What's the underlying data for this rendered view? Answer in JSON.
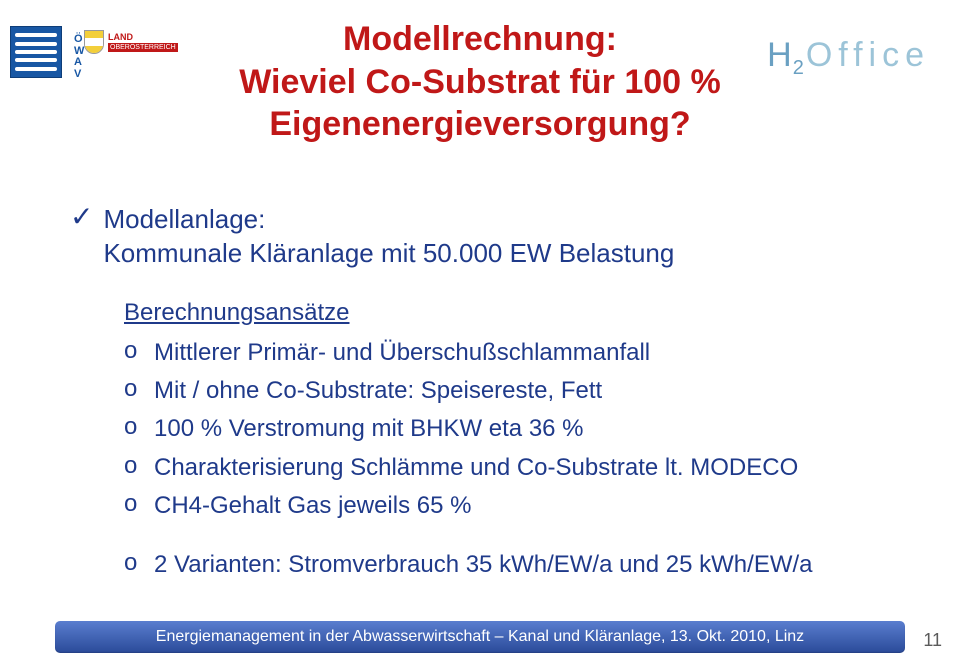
{
  "colors": {
    "title": "#c01818",
    "body_text": "#1f3a8a",
    "footer_bg": "#3b5fb0",
    "footer_bg_grad_top": "#5a7ecf",
    "footer_bg_grad_bottom": "#2a4a99",
    "footer_text": "#ffffff",
    "page_num": "#5b5b5b",
    "logo_owav_bg": "#1857a4",
    "logo_right_h": "#6aa0c2",
    "logo_right_office": "#9cc4d8",
    "ooe_red": "#c01818",
    "ooe_yellow": "#f3cf3a",
    "ooe_white": "#ffffff"
  },
  "title": {
    "lines": [
      "Modellrechnung:",
      "Wieviel Co-Substrat für 100 %",
      "Eigenenergieversorgung?"
    ],
    "font_size": 34
  },
  "modellanlage": {
    "label_line1": "Modellanlage:",
    "label_line2": "Kommunale Kläranlage mit 50.000 EW Belastung"
  },
  "sub_heading": "Berechnungsansätze",
  "bullets": [
    "Mittlerer Primär- und Überschußschlammanfall",
    "Mit / ohne Co-Substrate: Speisereste, Fett",
    "100 % Verstromung mit BHKW eta 36 %",
    "Charakterisierung Schlämme und Co-Substrate lt. MODECO",
    "CH4-Gehalt Gas jeweils 65 %"
  ],
  "bullet_last": "2 Varianten: Stromverbrauch 35 kWh/EW/a und 25 kWh/EW/a",
  "footer": "Energiemanagement in der Abwasserwirtschaft – Kanal und Kläranlage, 13. Okt. 2010, Linz",
  "page_number": "11",
  "logo_right": {
    "h": "H",
    "sub": "2",
    "office": "Office"
  },
  "logo_left": {
    "owav_vertical": "Ö\nW\nA\nV",
    "ooe_land": "LAND",
    "ooe_ober": "OBERÖSTERREICH"
  }
}
